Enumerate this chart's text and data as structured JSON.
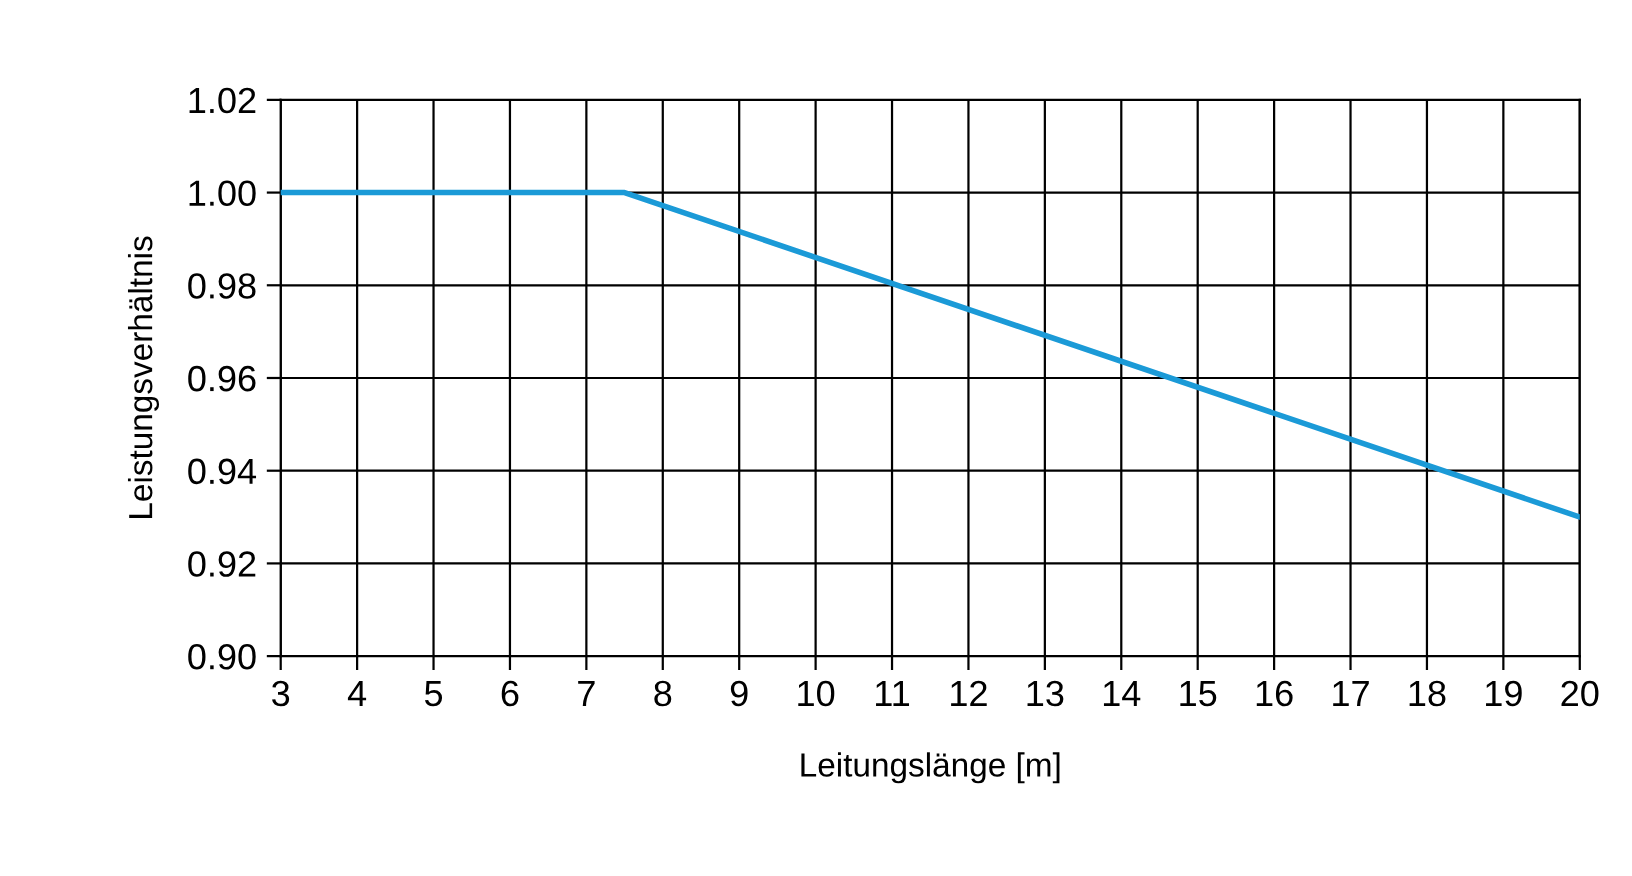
{
  "chart_data": {
    "type": "line",
    "xlabel": "Leitungslänge [m]",
    "ylabel": "Leistungsverhältnis",
    "x": [
      3,
      7.5,
      20
    ],
    "series": [
      {
        "color": "#1b9ad7",
        "values": [
          1.0,
          1.0,
          0.93
        ]
      }
    ],
    "xlim": [
      3,
      20
    ],
    "xticks": [
      3,
      4,
      5,
      6,
      7,
      8,
      9,
      10,
      11,
      12,
      13,
      14,
      15,
      16,
      17,
      18,
      19,
      20
    ],
    "ylim": [
      0.9,
      1.02
    ],
    "yticks": [
      {
        "value": 0.9,
        "label": "0.90"
      },
      {
        "value": 0.92,
        "label": "0.92"
      },
      {
        "value": 0.94,
        "label": "0.94"
      },
      {
        "value": 0.96,
        "label": "0.96"
      },
      {
        "value": 0.98,
        "label": "0.98"
      },
      {
        "value": 1.0,
        "label": "1.00"
      },
      {
        "value": 1.02,
        "label": "1.02"
      }
    ],
    "grid": true,
    "marker": "none",
    "line_style": "solid"
  }
}
